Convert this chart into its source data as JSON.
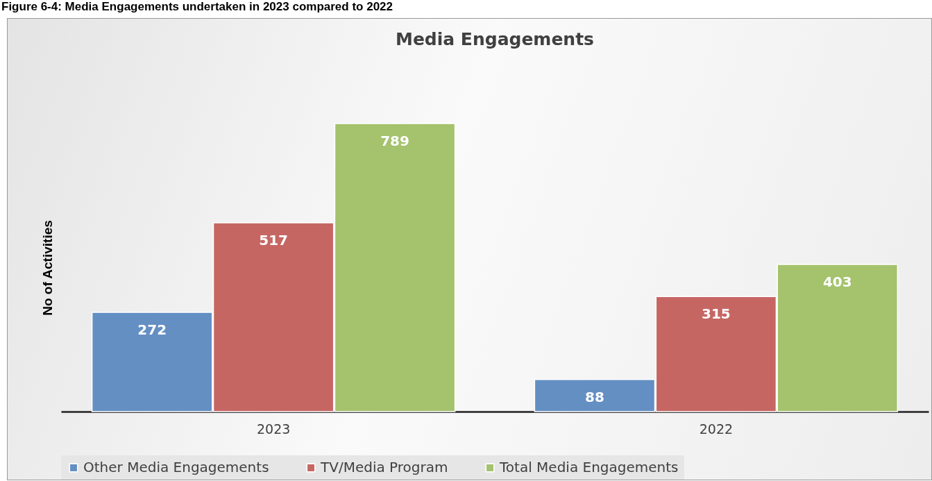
{
  "chart_data": {
    "type": "bar",
    "title": "Media Engagements",
    "ylabel": "No of Activities",
    "annotations": [
      "Figure 6-4: Media Engagements undertaken in 2023 compared to 2022"
    ],
    "categories": [
      "2023",
      "2022"
    ],
    "series": [
      {
        "name": "Other Media Engagements",
        "color": "#648fc3",
        "values": [
          272,
          88
        ]
      },
      {
        "name": "TV/Media Program",
        "color": "#c66663",
        "values": [
          517,
          315
        ]
      },
      {
        "name": "Total Media Engagements",
        "color": "#a5c26d",
        "values": [
          789,
          403
        ]
      }
    ],
    "data_labels": true,
    "legend": "bottom",
    "tick_labels": "x"
  }
}
